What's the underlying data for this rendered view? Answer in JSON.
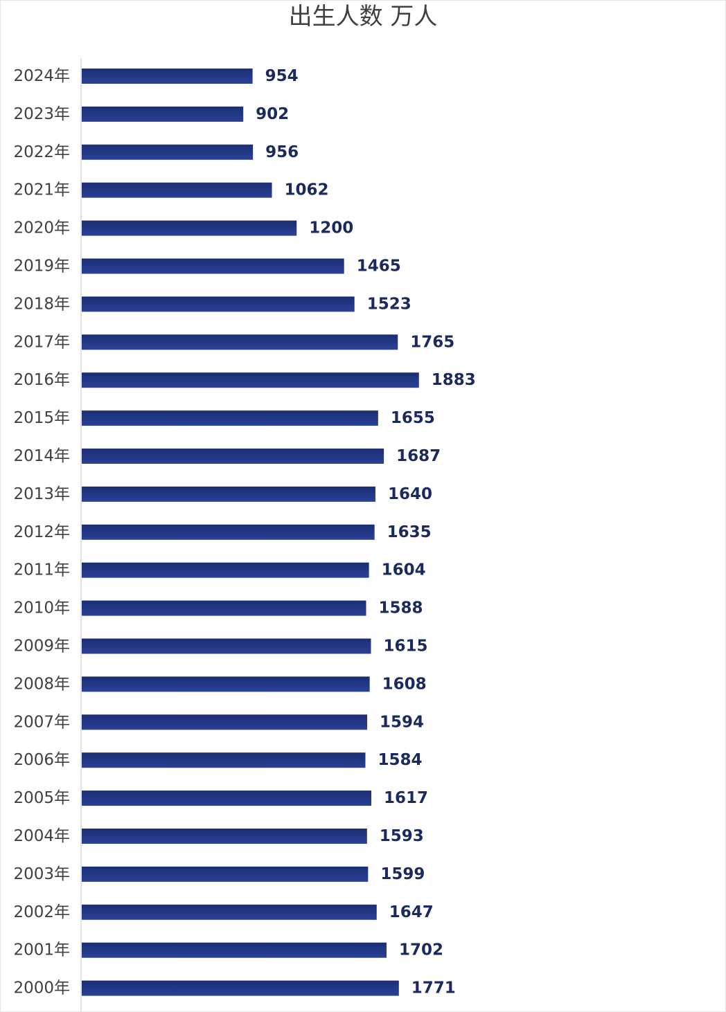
{
  "chart_data": {
    "type": "bar",
    "orientation": "horizontal",
    "title": "出生人数 万人",
    "categories": [
      "2024年",
      "2023年",
      "2022年",
      "2021年",
      "2020年",
      "2019年",
      "2018年",
      "2017年",
      "2016年",
      "2015年",
      "2014年",
      "2013年",
      "2012年",
      "2011年",
      "2010年",
      "2009年",
      "2008年",
      "2007年",
      "2006年",
      "2005年",
      "2004年",
      "2003年",
      "2002年",
      "2001年",
      "2000年"
    ],
    "values": [
      954,
      902,
      956,
      1062,
      1200,
      1465,
      1523,
      1765,
      1883,
      1655,
      1687,
      1640,
      1635,
      1604,
      1588,
      1615,
      1608,
      1594,
      1584,
      1617,
      1593,
      1599,
      1647,
      1702,
      1771
    ],
    "xlabel": "",
    "ylabel": "",
    "data_labels": true,
    "grid": false,
    "legend": "none",
    "colors": {
      "bar": "#1b2e73",
      "bar_gradient_end": "#2a4196",
      "value_label": "#1a2a5e",
      "category_label": "#404040",
      "axis_line": "#d9d9d9"
    }
  }
}
